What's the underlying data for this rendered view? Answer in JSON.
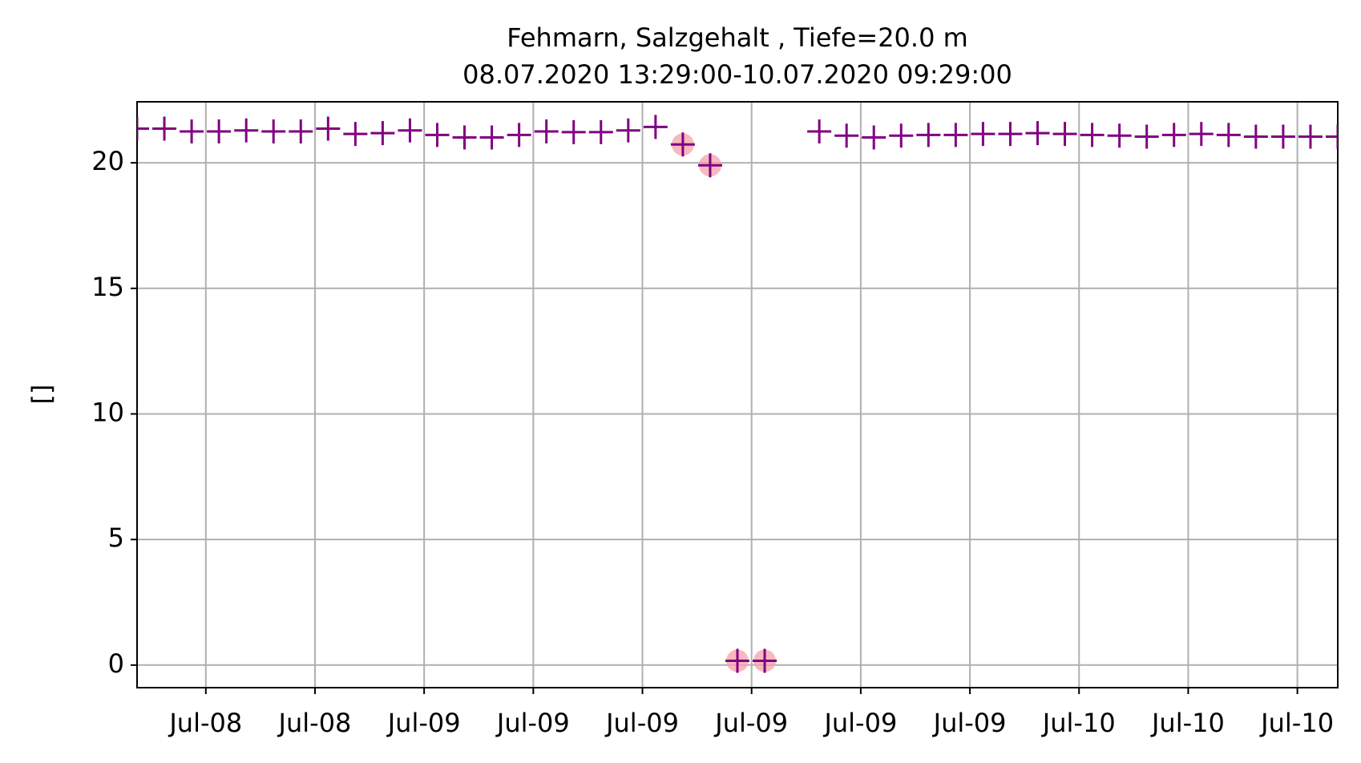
{
  "chart_data": {
    "type": "scatter",
    "title": "Fehmarn, Salzgehalt , Tiefe=20.0 m",
    "subtitle": "08.07.2020 13:29:00-10.07.2020 09:29:00",
    "y_label": "[]",
    "x": [
      0,
      1,
      2,
      3,
      4,
      5,
      6,
      7,
      8,
      9,
      10,
      11,
      12,
      13,
      14,
      15,
      16,
      17,
      18,
      19,
      20,
      21,
      22,
      23,
      24,
      25,
      26,
      27,
      28,
      29,
      30,
      31,
      32,
      33,
      34,
      35,
      36,
      37,
      38,
      39,
      40,
      41,
      42,
      43,
      44
    ],
    "series": [
      {
        "color": "#800080",
        "marker": "plus",
        "values": [
          21.36,
          21.36,
          21.25,
          21.25,
          21.29,
          21.25,
          21.25,
          21.36,
          21.15,
          21.18,
          21.29,
          21.11,
          21.01,
          21.01,
          21.11,
          21.25,
          21.22,
          21.22,
          21.29,
          21.43,
          20.73,
          19.9,
          0.17,
          0.17,
          null,
          21.25,
          21.08,
          21.01,
          21.08,
          21.11,
          21.11,
          21.15,
          21.15,
          21.18,
          21.15,
          21.11,
          21.08,
          21.04,
          21.11,
          21.15,
          21.11,
          21.04,
          21.04,
          21.04,
          21.04
        ]
      },
      {
        "color": "#f4a0aa",
        "marker": "circle",
        "values": [
          null,
          null,
          null,
          null,
          null,
          null,
          null,
          null,
          null,
          null,
          null,
          null,
          null,
          null,
          null,
          null,
          null,
          null,
          null,
          null,
          20.73,
          19.9,
          0.17,
          0.17,
          null,
          null,
          null,
          null,
          null,
          null,
          null,
          null,
          null,
          null,
          null,
          null,
          null,
          null,
          null,
          null,
          null,
          null,
          null,
          null,
          null
        ]
      }
    ],
    "xlim": [
      0,
      44
    ],
    "xticks": [
      {
        "value": 2.52,
        "label": "Jul-08"
      },
      {
        "value": 6.52,
        "label": "Jul-08"
      },
      {
        "value": 10.52,
        "label": "Jul-09"
      },
      {
        "value": 14.52,
        "label": "Jul-09"
      },
      {
        "value": 18.52,
        "label": "Jul-09"
      },
      {
        "value": 22.52,
        "label": "Jul-09"
      },
      {
        "value": 26.52,
        "label": "Jul-09"
      },
      {
        "value": 30.52,
        "label": "Jul-09"
      },
      {
        "value": 34.52,
        "label": "Jul-10"
      },
      {
        "value": 38.52,
        "label": "Jul-10"
      },
      {
        "value": 42.52,
        "label": "Jul-10"
      }
    ],
    "ylim": [
      -0.9,
      22.43
    ],
    "yticks": [
      0,
      5,
      10,
      15,
      20
    ],
    "grid": true
  }
}
